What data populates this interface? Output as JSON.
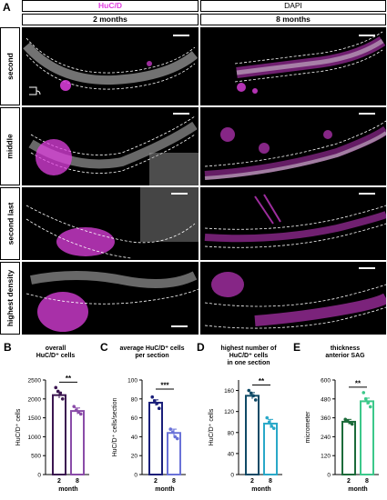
{
  "figure": {
    "panel_a_letter": "A",
    "headers": {
      "huc": "HuC/D",
      "dapi": "DAPI",
      "col1": "2 months",
      "col2": "8 months"
    },
    "rows": [
      "second",
      "middle",
      "second last",
      "highest density"
    ],
    "colors": {
      "huc": "#e040e0",
      "dapi": "#d8d8d8",
      "background": "#000000"
    }
  },
  "chart_data": [
    {
      "letter": "B",
      "type": "bar",
      "title": "overall HuC/D⁺ cells",
      "title_lines": [
        "overall",
        "HuC/D⁺ cells"
      ],
      "ylabel": "HuC/D⁺ cells",
      "xlabel": "month",
      "categories": [
        "2",
        "8"
      ],
      "values": [
        2100,
        1680
      ],
      "errors": [
        80,
        80
      ],
      "points": [
        [
          2300,
          2200,
          2150,
          2000
        ],
        [
          1800,
          1700,
          1650,
          1600
        ]
      ],
      "ylim": [
        0,
        2500
      ],
      "significance": "**",
      "colors": [
        "#3b1650",
        "#8a4ca8"
      ]
    },
    {
      "letter": "C",
      "type": "bar",
      "title": "average HuC/D⁺ cells per section",
      "title_lines": [
        "average HuC/D⁺ cells",
        "per section"
      ],
      "ylabel": "HuC/D⁺ cells/section",
      "xlabel": "month",
      "categories": [
        "2",
        "8"
      ],
      "values": [
        76,
        44
      ],
      "errors": [
        3,
        4
      ],
      "points": [
        [
          82,
          78,
          75,
          70
        ],
        [
          48,
          45,
          40,
          38
        ]
      ],
      "ylim": [
        0,
        100
      ],
      "significance": "***",
      "colors": [
        "#1a1f7a",
        "#6a72d8"
      ]
    },
    {
      "letter": "D",
      "type": "bar",
      "title": "highest number of HuC/D⁺ cells in one section",
      "title_lines": [
        "highest number of",
        "HuC/D⁺ cells",
        "in one section"
      ],
      "ylabel": "HuC/D⁺ cells",
      "xlabel": "month",
      "categories": [
        "2",
        "8"
      ],
      "values": [
        150,
        97
      ],
      "errors": [
        6,
        8
      ],
      "points": [
        [
          160,
          155,
          150,
          142
        ],
        [
          108,
          100,
          92,
          88
        ]
      ],
      "ylim": [
        0,
        180
      ],
      "yticks": [
        0,
        40,
        80,
        120,
        160
      ],
      "significance": "**",
      "colors": [
        "#0f4a66",
        "#29a8c8"
      ]
    },
    {
      "letter": "E",
      "type": "bar",
      "title": "thickness anterior SAG",
      "title_lines": [
        "thickness",
        "anterior SAG"
      ],
      "ylabel": "micrometer",
      "xlabel": "month",
      "categories": [
        "2",
        "8"
      ],
      "values": [
        335,
        465
      ],
      "errors": [
        15,
        20
      ],
      "points": [
        [
          350,
          340,
          330,
          320
        ],
        [
          520,
          480,
          455,
          430
        ]
      ],
      "ylim": [
        0,
        600
      ],
      "significance": "**",
      "colors": [
        "#1c6b3a",
        "#3cc88a"
      ]
    }
  ]
}
